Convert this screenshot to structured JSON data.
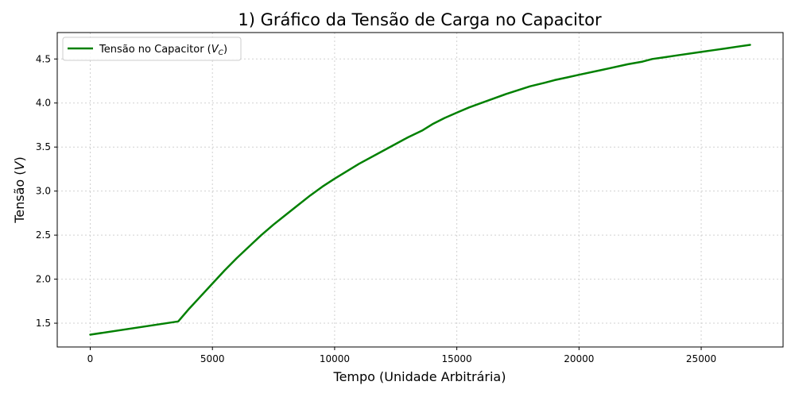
{
  "chart_data": {
    "type": "line",
    "title": "1) Gráfico da Tensão de Carga no Capacitor",
    "xlabel": "Tempo (Unidade Arbitrária)",
    "ylabel_main": "Tensão (",
    "ylabel_var": "V",
    "ylabel_end": ")",
    "xlim": [
      -1350,
      28350
    ],
    "ylim": [
      1.23,
      4.8
    ],
    "xticks": [
      0,
      5000,
      10000,
      15000,
      20000,
      25000
    ],
    "xtick_labels": [
      "0",
      "5000",
      "10000",
      "15000",
      "20000",
      "25000"
    ],
    "yticks": [
      1.5,
      2.0,
      2.5,
      3.0,
      3.5,
      4.0,
      4.5
    ],
    "ytick_labels": [
      "1.5",
      "2.0",
      "2.5",
      "3.0",
      "3.5",
      "4.0",
      "4.5"
    ],
    "grid": true,
    "legend_position": "top-left",
    "series": [
      {
        "name_main": "Tensão no Capacitor (",
        "name_var": "V",
        "name_sub": "C",
        "name_end": ")",
        "color": "#008000",
        "x": [
          0,
          3600,
          4000,
          4500,
          5000,
          5500,
          6000,
          6500,
          7000,
          7500,
          8000,
          8500,
          9000,
          9500,
          10000,
          11000,
          12000,
          13000,
          13600,
          14000,
          14500,
          15000,
          15500,
          16000,
          17000,
          18000,
          18600,
          19000,
          19500,
          20000,
          21000,
          22000,
          22600,
          23000,
          23500,
          24000,
          25000,
          25500,
          26000,
          26500,
          27000
        ],
        "y": [
          1.37,
          1.52,
          1.65,
          1.8,
          1.95,
          2.1,
          2.24,
          2.37,
          2.5,
          2.62,
          2.73,
          2.84,
          2.95,
          3.05,
          3.14,
          3.31,
          3.46,
          3.61,
          3.69,
          3.76,
          3.83,
          3.89,
          3.95,
          4.0,
          4.1,
          4.19,
          4.23,
          4.26,
          4.29,
          4.32,
          4.38,
          4.44,
          4.47,
          4.5,
          4.52,
          4.54,
          4.58,
          4.6,
          4.62,
          4.64,
          4.66
        ]
      }
    ]
  }
}
